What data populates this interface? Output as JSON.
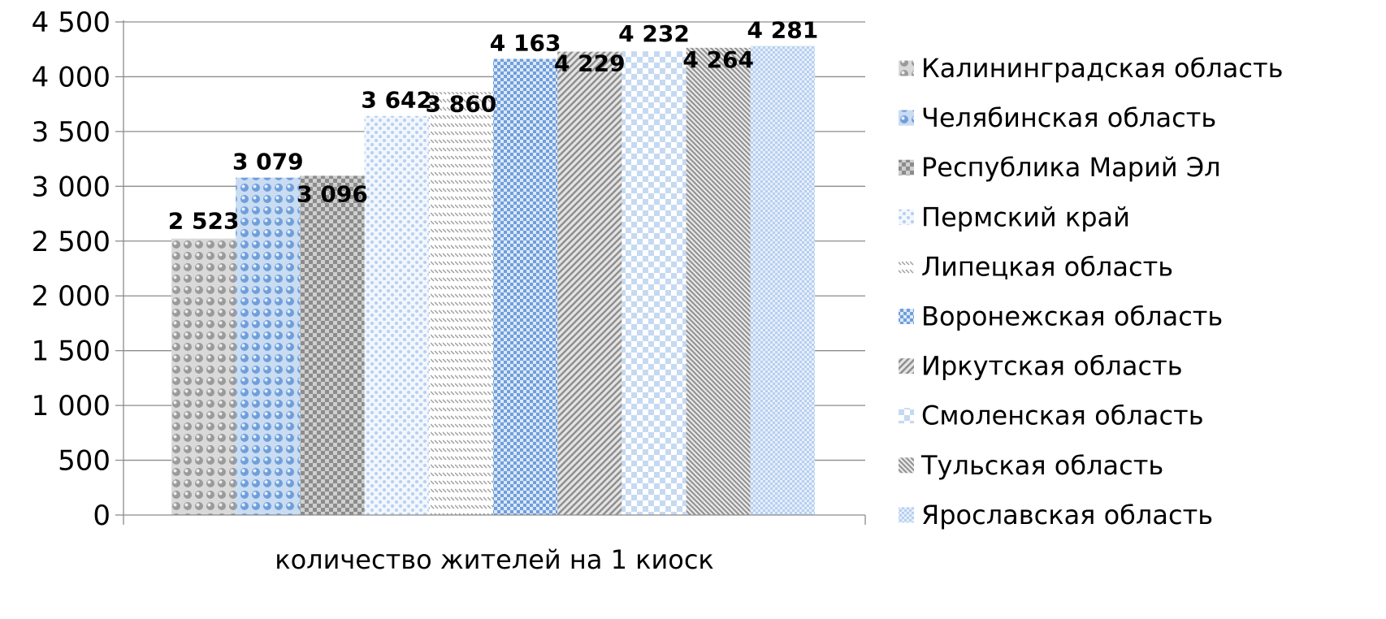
{
  "chart_data": {
    "type": "bar",
    "categories": [
      "количество жителей на 1 киоск"
    ],
    "series": [
      {
        "name": "Калининградская область",
        "values": [
          2523
        ],
        "label": "2 523",
        "color": "#a6a6a6",
        "pattern": "dots-gray"
      },
      {
        "name": "Челябинская область",
        "values": [
          3079
        ],
        "label": "3 079",
        "color": "#8db4e2",
        "pattern": "dots-blue"
      },
      {
        "name": "Республика Марий Эл",
        "values": [
          3096
        ],
        "label": "3 096",
        "color": "#a6a6a6",
        "pattern": "grid-gray"
      },
      {
        "name": "Пермский край",
        "values": [
          3642
        ],
        "label": "3 642",
        "color": "#c5d9f1",
        "pattern": "sparse-dots-blue"
      },
      {
        "name": "Липецкая область",
        "values": [
          3860
        ],
        "label": "3 860",
        "color": "#bfbfbf",
        "pattern": "dashes-gray"
      },
      {
        "name": "Воронежская область",
        "values": [
          4163
        ],
        "label": "4 163",
        "color": "#8db4e2",
        "pattern": "checker-blue"
      },
      {
        "name": "Иркутская область",
        "values": [
          4229
        ],
        "label": "4 229",
        "color": "#a6a6a6",
        "pattern": "diag-gray"
      },
      {
        "name": "Смоленская область",
        "values": [
          4232
        ],
        "label": "4 232",
        "color": "#c5d9f1",
        "pattern": "big-checker-blue"
      },
      {
        "name": "Тульская область",
        "values": [
          4264
        ],
        "label": "4 264",
        "color": "#a6a6a6",
        "pattern": "diag-dense-gray"
      },
      {
        "name": "Ярославская область",
        "values": [
          4281
        ],
        "label": "4 281",
        "color": "#c5d9f1",
        "pattern": "fine-checker-blue"
      }
    ],
    "yticks": [
      {
        "value": 0,
        "label": "0"
      },
      {
        "value": 500,
        "label": "500"
      },
      {
        "value": 1000,
        "label": "1 000"
      },
      {
        "value": 1500,
        "label": "1 500"
      },
      {
        "value": 2000,
        "label": "2 000"
      },
      {
        "value": 2500,
        "label": "2 500"
      },
      {
        "value": 3000,
        "label": "3 000"
      },
      {
        "value": 3500,
        "label": "3 500"
      },
      {
        "value": 4000,
        "label": "4 000"
      },
      {
        "value": 4500,
        "label": "4 500"
      }
    ],
    "ylim": [
      0,
      4500
    ],
    "grid": true,
    "legend": "right",
    "title": "",
    "xlabel": "",
    "ylabel": ""
  }
}
